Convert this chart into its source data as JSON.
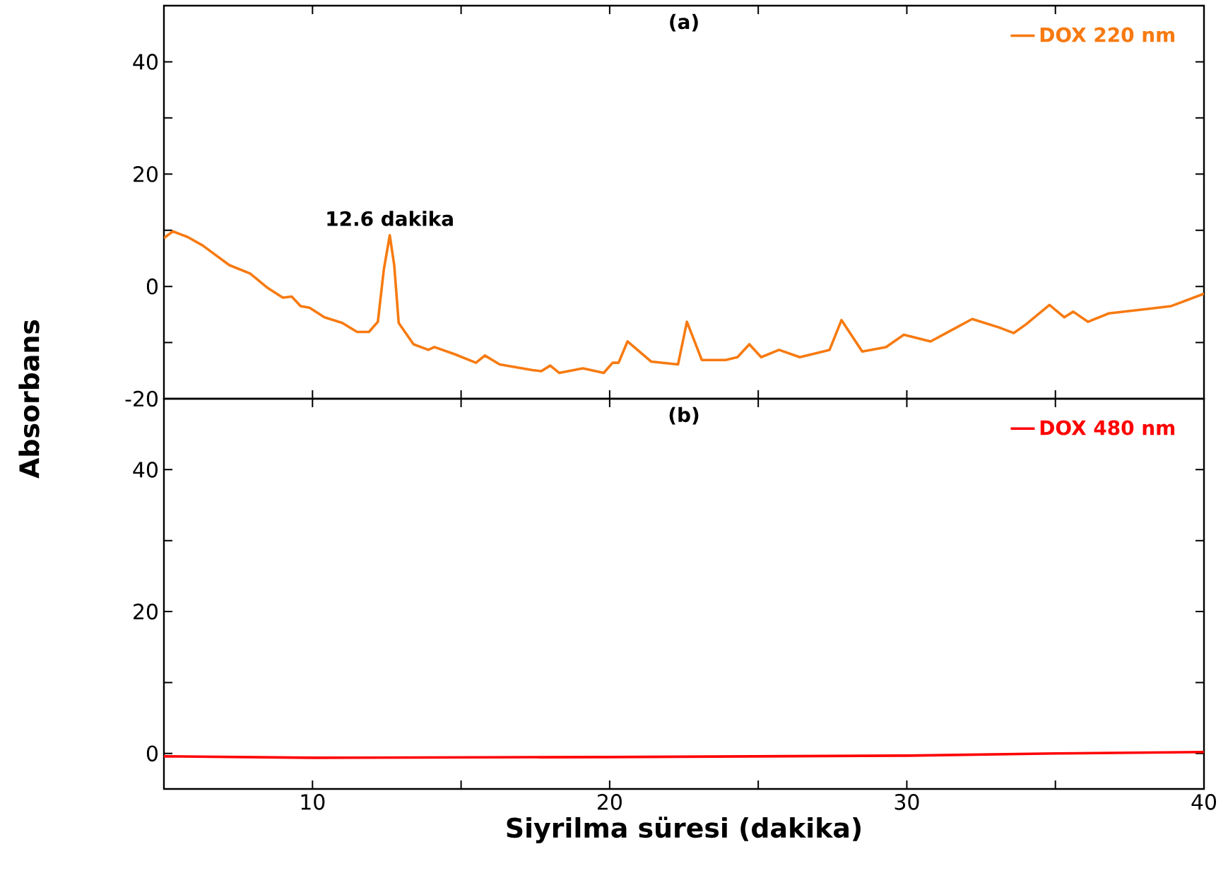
{
  "chart_data": [
    {
      "type": "line",
      "title": "(a)",
      "ylabel": "Absorbans",
      "x": [
        5,
        5.3,
        5.8,
        6.3,
        7.2,
        7.9,
        8.5,
        9.0,
        9.3,
        9.6,
        9.9,
        10.4,
        11.0,
        11.5,
        11.9,
        12.2,
        12.4,
        12.6,
        12.75,
        12.9,
        13.4,
        13.9,
        14.1,
        14.8,
        15.5,
        15.8,
        16.3,
        17.4,
        17.7,
        18.0,
        18.3,
        19.1,
        19.8,
        20.1,
        20.3,
        20.6,
        21.4,
        22.3,
        22.6,
        23.1,
        23.9,
        24.3,
        24.7,
        25.1,
        25.7,
        26.4,
        27.4,
        27.8,
        28.5,
        29.3,
        29.9,
        30.8,
        31.5,
        32.2,
        33.1,
        33.6,
        34.0,
        34.8,
        35.3,
        35.6,
        36.1,
        36.8,
        38.1,
        38.9,
        40
      ],
      "series": [
        {
          "name": "DOX 220 nm",
          "color": "#f77a10",
          "values": [
            8.6,
            9.8,
            8.8,
            7.3,
            3.8,
            2.3,
            -0.3,
            -2.0,
            -1.8,
            -3.5,
            -3.8,
            -5.5,
            -6.5,
            -8.1,
            -8.1,
            -6.3,
            3,
            9.1,
            3.8,
            -6.5,
            -10.3,
            -11.3,
            -10.8,
            -12.1,
            -13.6,
            -12.3,
            -13.9,
            -14.9,
            -15.1,
            -14.1,
            -15.4,
            -14.6,
            -15.4,
            -13.6,
            -13.6,
            -9.8,
            -13.4,
            -13.9,
            -6.3,
            -13.1,
            -13.1,
            -12.6,
            -10.3,
            -12.6,
            -11.3,
            -12.6,
            -11.3,
            -6.0,
            -11.6,
            -10.8,
            -8.6,
            -9.8,
            -7.8,
            -5.8,
            -7.3,
            -8.3,
            -6.8,
            -3.3,
            -5.5,
            -4.5,
            -6.3,
            -4.8,
            -4.0,
            -3.5,
            -1.3
          ]
        }
      ],
      "annotations": [
        {
          "text": "12.6 dakika",
          "x": 12.6,
          "y": 9.1
        }
      ],
      "xlim": [
        5,
        40
      ],
      "ylim": [
        -20,
        50
      ],
      "xticks": [
        10,
        {
          "value": 15,
          "label": null
        },
        20,
        {
          "value": 25,
          "label": null
        },
        30,
        {
          "value": 35,
          "label": null
        },
        40
      ],
      "yticks": [
        -20,
        {
          "value": -10,
          "label": null
        },
        0,
        {
          "value": 10,
          "label": null
        },
        20,
        {
          "value": 30,
          "label": null
        },
        40
      ],
      "tick_labels": "y",
      "legend": "top right",
      "grid": false
    },
    {
      "type": "line",
      "title": "(b)",
      "xlabel": "Siyrilma süresi (dakika)",
      "x": [
        5,
        10,
        20,
        30,
        35,
        40
      ],
      "series": [
        {
          "name": "DOX 480 nm",
          "color": "#ff0000",
          "values": [
            -0.4,
            -0.6,
            -0.5,
            -0.3,
            0,
            0.2
          ]
        }
      ],
      "xlim": [
        5,
        40
      ],
      "ylim": [
        -5,
        50
      ],
      "xticks": [
        10,
        {
          "value": 15,
          "label": null
        },
        20,
        {
          "value": 25,
          "label": null
        },
        30,
        {
          "value": 35,
          "label": null
        },
        40
      ],
      "yticks": [
        0,
        {
          "value": 10,
          "label": null
        },
        20,
        {
          "value": 30,
          "label": null
        },
        40
      ],
      "legend": "top right",
      "grid": false
    }
  ]
}
